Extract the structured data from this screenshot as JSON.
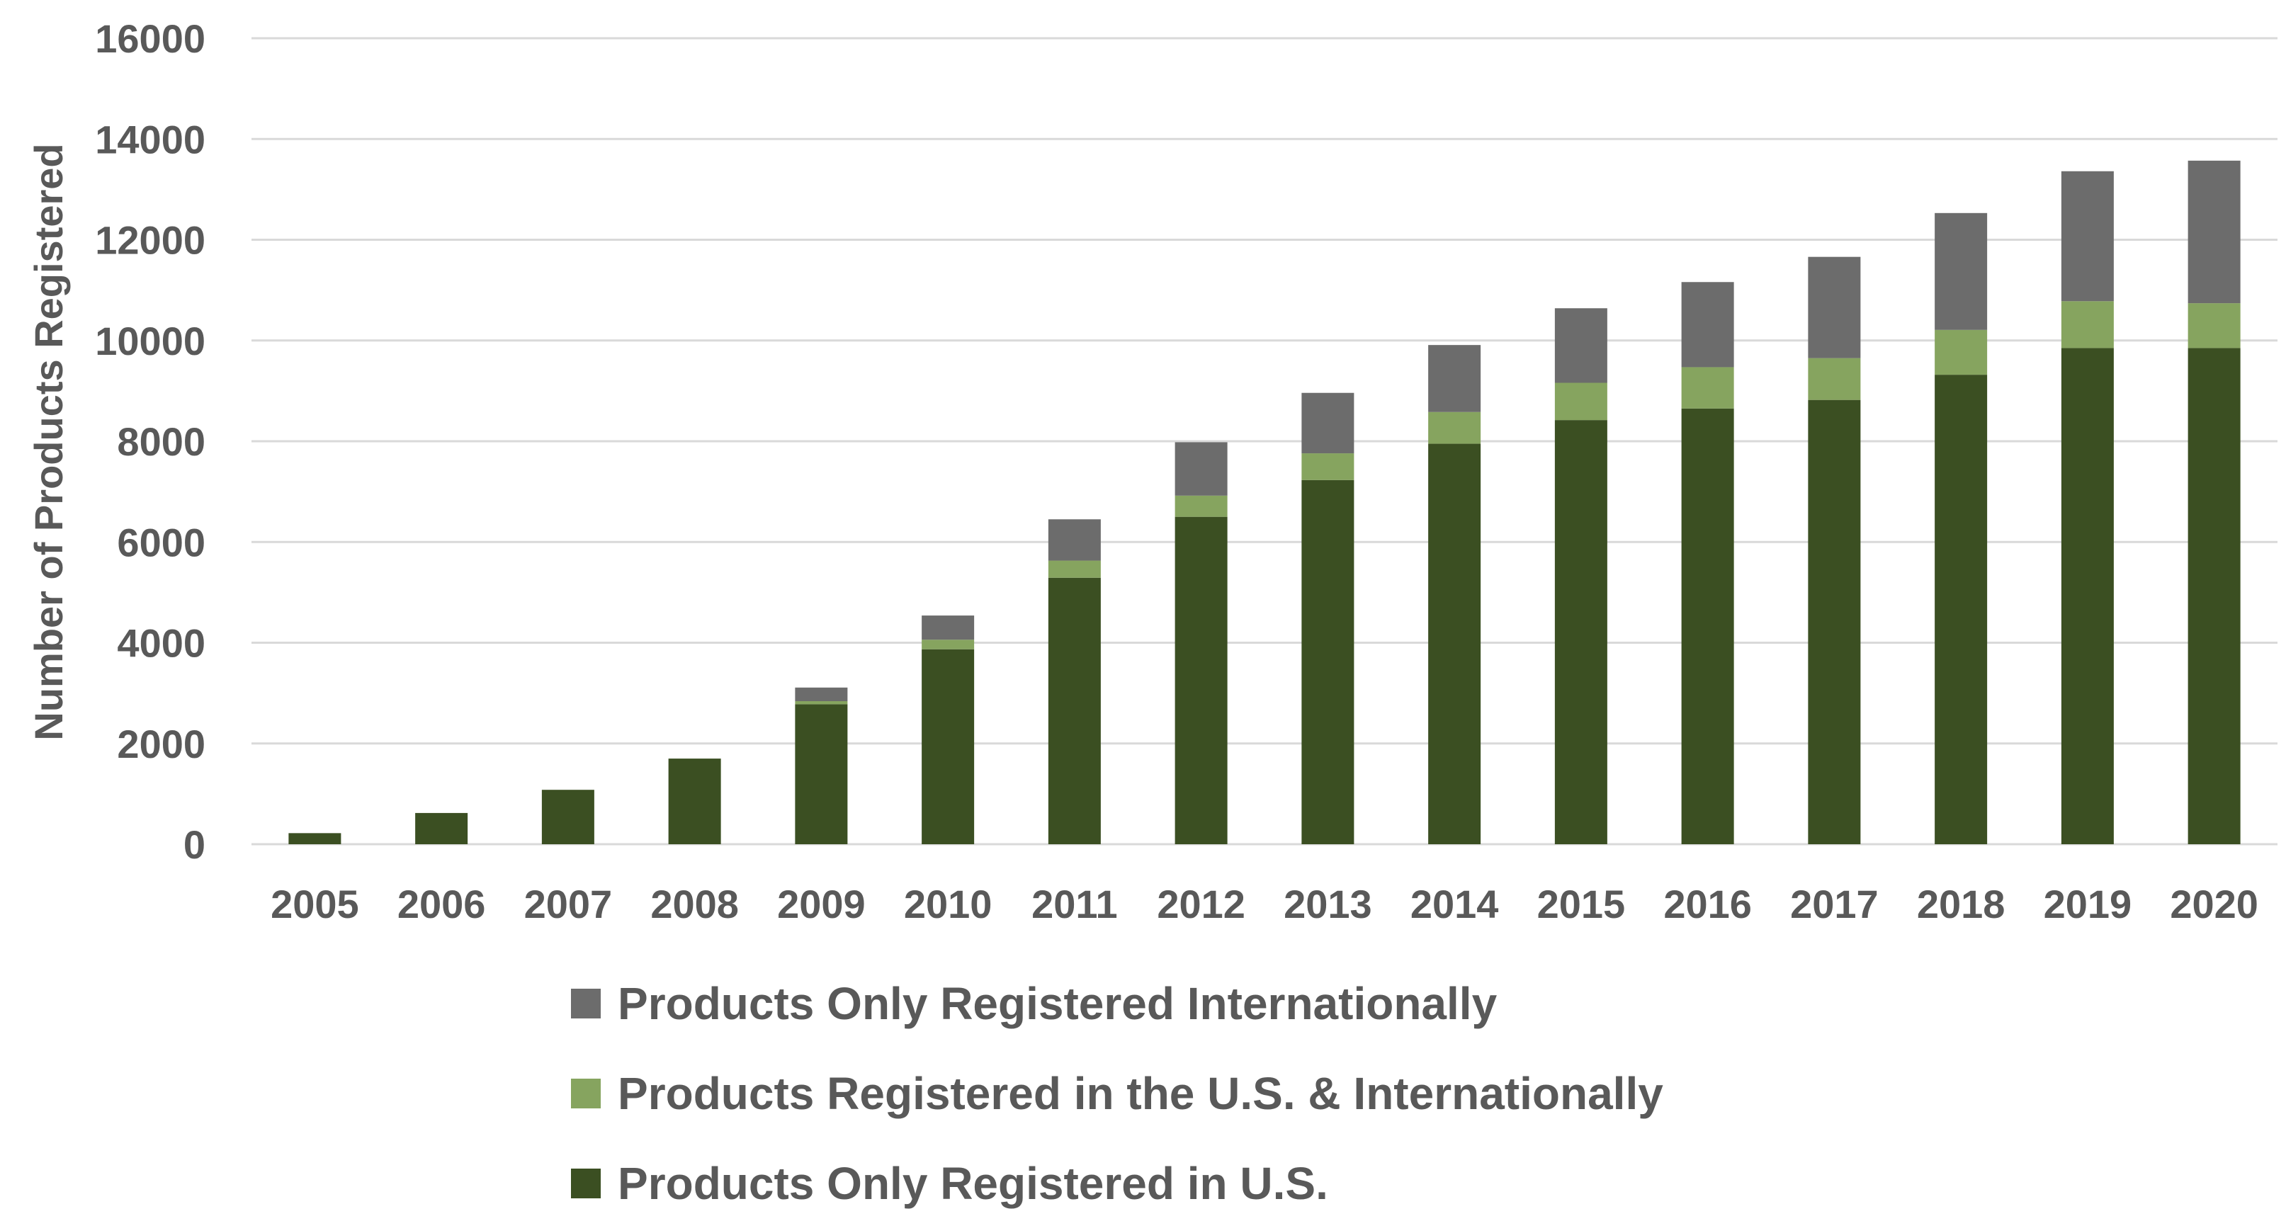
{
  "chart_data": {
    "type": "bar",
    "stacked": true,
    "title": "",
    "xlabel": "",
    "ylabel": "Number of Products Registered",
    "ylim": [
      0,
      16000
    ],
    "yticks": [
      0,
      2000,
      4000,
      6000,
      8000,
      10000,
      12000,
      14000,
      16000
    ],
    "grid": true,
    "legend_position": "bottom",
    "categories": [
      "2005",
      "2006",
      "2007",
      "2008",
      "2009",
      "2010",
      "2011",
      "2012",
      "2013",
      "2014",
      "2015",
      "2016",
      "2017",
      "2018",
      "2019",
      "2020"
    ],
    "series": [
      {
        "name": "Products Only Registered in U.S.",
        "color": "#3b4f22",
        "values": [
          220,
          620,
          1080,
          1700,
          2780,
          3870,
          5290,
          6500,
          7230,
          7950,
          8420,
          8650,
          8820,
          9320,
          9850,
          9850
        ]
      },
      {
        "name": "Products Registered in the U.S. & Internationally",
        "color": "#86a45f",
        "values": [
          0,
          0,
          0,
          0,
          60,
          190,
          340,
          420,
          530,
          630,
          740,
          820,
          830,
          890,
          930,
          890
        ]
      },
      {
        "name": "Products Only Registered Internationally",
        "color": "#6c6c6c",
        "values": [
          0,
          0,
          0,
          0,
          270,
          480,
          820,
          1060,
          1200,
          1330,
          1480,
          1690,
          2010,
          2320,
          2580,
          2830
        ]
      }
    ],
    "legend_order": [
      2,
      1,
      0
    ]
  }
}
